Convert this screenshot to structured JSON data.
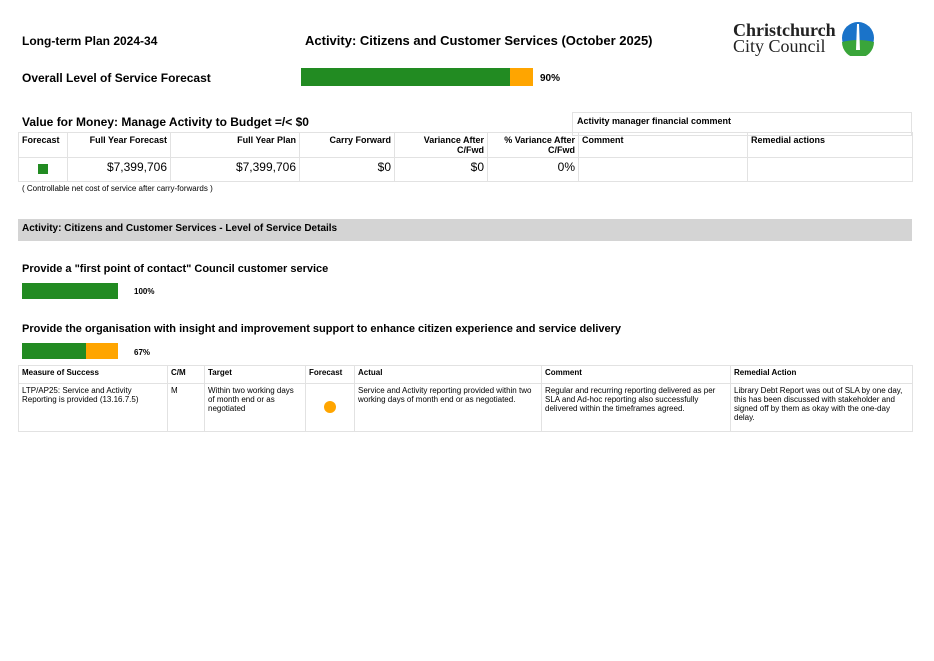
{
  "header": {
    "plan": "Long-term Plan 2024-34",
    "title": "Activity: Citizens and Customer Services (October 2025)",
    "logo": {
      "line1": "Christchurch",
      "line2": "City Council"
    }
  },
  "overall": {
    "label": "Overall Level of Service Forecast",
    "percent_label": "90%",
    "green_fraction": 0.9,
    "colors": {
      "green": "#228B22",
      "orange": "#FFA500"
    }
  },
  "budget": {
    "title": "Value for Money: Manage Activity to Budget =/< $0",
    "manager_comment_heading": "Activity manager financial comment",
    "columns": [
      "Forecast",
      "Full Year Forecast",
      "Full Year Plan",
      "Carry Forward",
      "Variance After C/Fwd",
      "% Variance After C/Fwd",
      "Comment",
      "Remedial actions"
    ],
    "row": {
      "forecast_status": "green",
      "full_year_forecast": "$7,399,706",
      "full_year_plan": "$7,399,706",
      "carry_forward": "$0",
      "variance": "$0",
      "pct_variance": "0%",
      "comment": "",
      "remedial": ""
    },
    "note": "( Controllable net cost of service after carry-forwards )"
  },
  "details_heading": "Activity: Citizens and Customer Services - Level of Service Details",
  "services": [
    {
      "title": "Provide a \"first point of contact\" Council customer service",
      "percent_label": "100%",
      "green_fraction": 1.0
    },
    {
      "title": "Provide the organisation with insight and improvement support to enhance citizen experience and service delivery",
      "percent_label": "67%",
      "green_fraction": 0.67
    }
  ],
  "measures": {
    "columns": [
      "Measure of Success",
      "C/M",
      "Target",
      "Forecast",
      "Actual",
      "Comment",
      "Remedial Action"
    ],
    "rows": [
      {
        "measure": "LTP/AP25: Service and Activity Reporting is provided (13.16.7.5)",
        "cm": "M",
        "target": "Within two working days of month end or as negotiated",
        "forecast_status": "orange",
        "actual": "Service and Activity reporting provided within two working days of month end or as negotiated.",
        "comment": "Regular and recurring reporting delivered as per SLA and Ad-hoc reporting also successfully delivered within the timeframes agreed.",
        "remedial": "Library Debt Report was out of SLA by one day, this has been discussed with stakeholder and signed off by them as okay with the one-day delay."
      }
    ]
  }
}
